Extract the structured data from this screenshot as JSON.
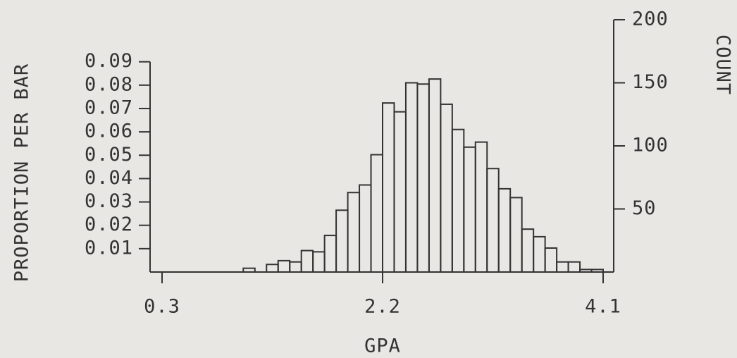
{
  "chart_data": {
    "type": "histogram",
    "x_label": "GPA",
    "y_label": "PROPORTION PER BAR",
    "y2_label": "COUNT",
    "bins": [
      1.0,
      1.1,
      1.2,
      1.3,
      1.4,
      1.5,
      1.6,
      1.7,
      1.8,
      1.9,
      2.0,
      2.1,
      2.2,
      2.3,
      2.4,
      2.5,
      2.6,
      2.7,
      2.8,
      2.9,
      3.0,
      3.1,
      3.2,
      3.3,
      3.4,
      3.5,
      3.6,
      3.7,
      3.8,
      3.9,
      4.0,
      4.1
    ],
    "series": [
      {
        "axis": "y2",
        "color": "#333333",
        "values": [
          3,
          0,
          6,
          9,
          8,
          17,
          16,
          29,
          49,
          63,
          69,
          93,
          134,
          127,
          150,
          149,
          153,
          133,
          113,
          99,
          103,
          82,
          66,
          59,
          34,
          28,
          19,
          8,
          8,
          2,
          2
        ]
      }
    ],
    "xlim": [
      0.3,
      4.1
    ],
    "xticks": [
      0.3,
      2.2,
      4.1
    ],
    "ylim": [
      0,
      0.108
    ],
    "yticks": [
      0.01,
      0.02,
      0.03,
      0.04,
      0.05,
      0.06,
      0.07,
      0.08,
      0.09
    ],
    "y2lim": [
      0,
      200
    ],
    "y2ticks": [
      50,
      100,
      150,
      200
    ],
    "grid": false
  }
}
